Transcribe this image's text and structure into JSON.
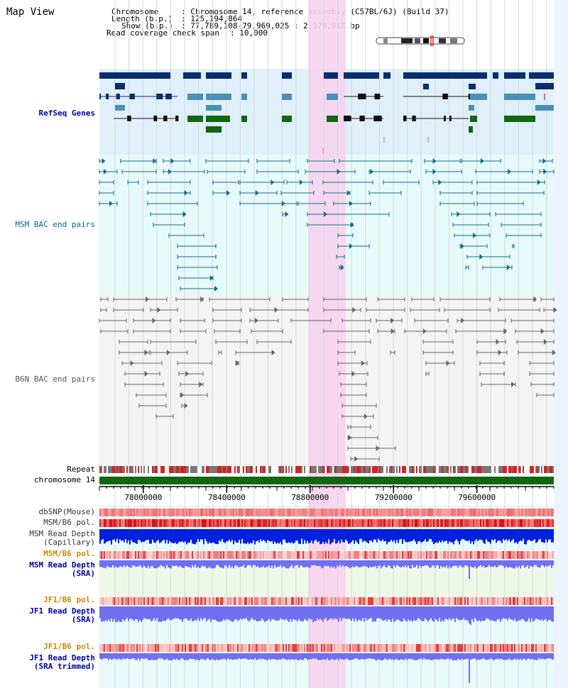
{
  "title": "Map View",
  "info": {
    "chromosome_label": "Chromosome",
    "chromosome_value": ": Chromosome 14, reference assembly (C57BL/6J) (Build 37)",
    "length_label": "Length (b.p.)",
    "length_value": ": 125,194,864",
    "show_label": "Show (b.p.)",
    "show_value": ": 77,789,108-79,969,025 : 2,179,918 bp",
    "coverage_label": "Read coverage check span",
    "coverage_value": ": 10,000"
  },
  "tracks": {
    "refseq": "RefSeq Genes",
    "msm_bac": "MSM BAC end pairs",
    "b6n_bac": "B6N BAC end pairs",
    "repeat": "Repeat",
    "chromosome": "chromosome 14",
    "dbsnp": "dbSNP(Mouse)",
    "msm_b6_pol_1": "MSM/B6 pol.",
    "msm_read_depth_cap": "MSM Read Depth\n(Capillary)",
    "msm_b6_pol_2": "MSM/B6 pol.",
    "msm_read_depth_sra": "MSM Read Depth\n(SRA)",
    "jf1_b6_pol_1": "JF1/B6 pol.",
    "jf1_read_depth_sra": "JF1 Read Depth\n(SRA)",
    "jf1_b6_pol_2": "JF1/B6 pol.",
    "jf1_read_depth_trim": "JF1 Read Depth\n(SRA trimmed)"
  },
  "axis": {
    "ticks": [
      "78000000",
      "78400000",
      "78800000",
      "79200000",
      "79600000"
    ],
    "range_start": 77789108,
    "range_end": 79969025
  },
  "colors": {
    "refseq_bg": "#dff0fa",
    "msm_bg": "#e6fafa",
    "b6n_bg": "#f4f4f4",
    "highlight": "#f7d4ef",
    "label_blue": "#0000aa",
    "label_teal": "#006c8c",
    "label_gray": "#555555",
    "label_orange": "#cc8800",
    "chromosome_green": "#116611",
    "depth_blue": "#0022dd",
    "depth_light_blue": "#7070f0"
  }
}
